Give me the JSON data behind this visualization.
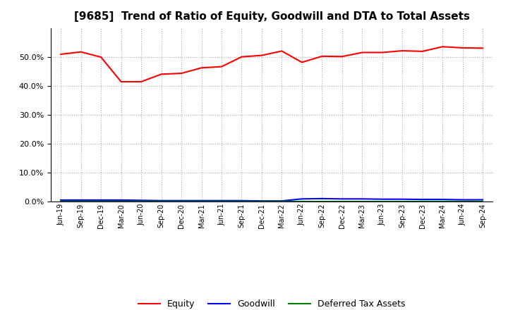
{
  "title": "[9685]  Trend of Ratio of Equity, Goodwill and DTA to Total Assets",
  "x_labels": [
    "Jun-19",
    "Sep-19",
    "Dec-19",
    "Mar-20",
    "Jun-20",
    "Sep-20",
    "Dec-20",
    "Mar-21",
    "Jun-21",
    "Sep-21",
    "Dec-21",
    "Mar-22",
    "Jun-22",
    "Sep-22",
    "Dec-22",
    "Mar-23",
    "Jun-23",
    "Sep-23",
    "Dec-23",
    "Mar-24",
    "Jun-24",
    "Sep-24"
  ],
  "equity": [
    0.509,
    0.517,
    0.499,
    0.414,
    0.414,
    0.44,
    0.443,
    0.462,
    0.466,
    0.5,
    0.505,
    0.52,
    0.481,
    0.502,
    0.501,
    0.515,
    0.515,
    0.521,
    0.519,
    0.535,
    0.531,
    0.53
  ],
  "goodwill": [
    0.005,
    0.005,
    0.005,
    0.005,
    0.004,
    0.003,
    0.003,
    0.003,
    0.003,
    0.003,
    0.002,
    0.002,
    0.009,
    0.01,
    0.009,
    0.009,
    0.008,
    0.008,
    0.007,
    0.007,
    0.006,
    0.006
  ],
  "dta": [
    0.001,
    0.001,
    0.001,
    0.001,
    0.001,
    0.001,
    0.001,
    0.001,
    0.001,
    0.001,
    0.001,
    0.001,
    0.001,
    0.001,
    0.001,
    0.001,
    0.001,
    0.001,
    0.001,
    0.001,
    0.001,
    0.001
  ],
  "equity_color": "#FF0000",
  "goodwill_color": "#0000FF",
  "dta_color": "#008000",
  "ylim": [
    0.0,
    0.6
  ],
  "yticks": [
    0.0,
    0.1,
    0.2,
    0.3,
    0.4,
    0.5
  ],
  "background_color": "#FFFFFF",
  "plot_bg_color": "#FFFFFF",
  "grid_color": "#AAAAAA",
  "title_fontsize": 11,
  "legend_labels": [
    "Equity",
    "Goodwill",
    "Deferred Tax Assets"
  ]
}
